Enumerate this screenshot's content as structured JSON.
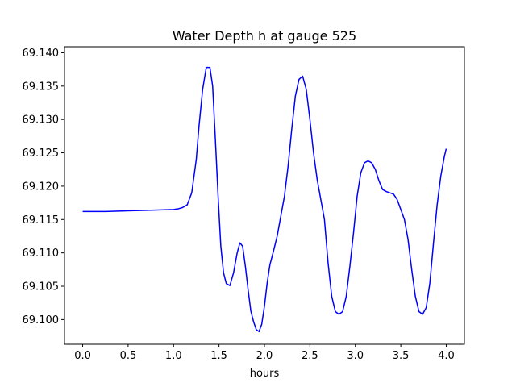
{
  "chart_data": {
    "type": "line",
    "title": "Water Depth h at gauge 525",
    "xlabel": "hours",
    "ylabel": "",
    "xlim": [
      -0.2,
      4.2
    ],
    "ylim": [
      69.0963,
      69.1409
    ],
    "xticks": [
      0.0,
      0.5,
      1.0,
      1.5,
      2.0,
      2.5,
      3.0,
      3.5,
      4.0
    ],
    "xtick_labels": [
      "0.0",
      "0.5",
      "1.0",
      "1.5",
      "2.0",
      "2.5",
      "3.0",
      "3.5",
      "4.0"
    ],
    "yticks": [
      69.1,
      69.105,
      69.11,
      69.115,
      69.12,
      69.125,
      69.13,
      69.135,
      69.14
    ],
    "ytick_labels": [
      "69.100",
      "69.105",
      "69.110",
      "69.115",
      "69.120",
      "69.125",
      "69.130",
      "69.135",
      "69.140"
    ],
    "grid": false,
    "series": [
      {
        "color": "#0000ff",
        "x": [
          0.0,
          0.25,
          0.5,
          0.75,
          1.0,
          1.05,
          1.1,
          1.15,
          1.2,
          1.25,
          1.28,
          1.32,
          1.36,
          1.4,
          1.43,
          1.46,
          1.49,
          1.52,
          1.55,
          1.58,
          1.62,
          1.66,
          1.7,
          1.73,
          1.76,
          1.79,
          1.82,
          1.85,
          1.88,
          1.91,
          1.94,
          1.97,
          2.0,
          2.03,
          2.06,
          2.1,
          2.14,
          2.18,
          2.22,
          2.26,
          2.3,
          2.34,
          2.38,
          2.42,
          2.46,
          2.5,
          2.54,
          2.58,
          2.62,
          2.66,
          2.7,
          2.74,
          2.78,
          2.82,
          2.86,
          2.9,
          2.94,
          2.98,
          3.02,
          3.06,
          3.1,
          3.14,
          3.18,
          3.22,
          3.26,
          3.3,
          3.34,
          3.38,
          3.42,
          3.46,
          3.5,
          3.54,
          3.58,
          3.62,
          3.66,
          3.7,
          3.74,
          3.78,
          3.82,
          3.86,
          3.9,
          3.94,
          3.98,
          4.0
        ],
        "y": [
          69.1162,
          69.1162,
          69.1163,
          69.1164,
          69.1165,
          69.1166,
          69.1168,
          69.1172,
          69.119,
          69.124,
          69.129,
          69.1345,
          69.1378,
          69.1378,
          69.135,
          69.127,
          69.1185,
          69.111,
          69.107,
          69.1054,
          69.1051,
          69.107,
          69.11,
          69.1115,
          69.111,
          69.108,
          69.1045,
          69.1013,
          69.0997,
          69.0985,
          69.0982,
          69.0993,
          69.102,
          69.1055,
          69.1082,
          69.1103,
          69.1125,
          69.1155,
          69.1185,
          69.123,
          69.1285,
          69.1335,
          69.136,
          69.1365,
          69.1345,
          69.13,
          69.125,
          69.121,
          69.118,
          69.115,
          69.1085,
          69.1035,
          69.1012,
          69.1008,
          69.1012,
          69.1035,
          69.108,
          69.113,
          69.1185,
          69.122,
          69.1235,
          69.1238,
          69.1235,
          69.1225,
          69.1208,
          69.1195,
          69.1192,
          69.119,
          69.1188,
          69.118,
          69.1165,
          69.115,
          69.112,
          69.1075,
          69.1035,
          69.1012,
          69.1008,
          69.1018,
          69.1055,
          69.1115,
          69.1172,
          69.1215,
          69.1245,
          69.1256
        ]
      }
    ]
  }
}
